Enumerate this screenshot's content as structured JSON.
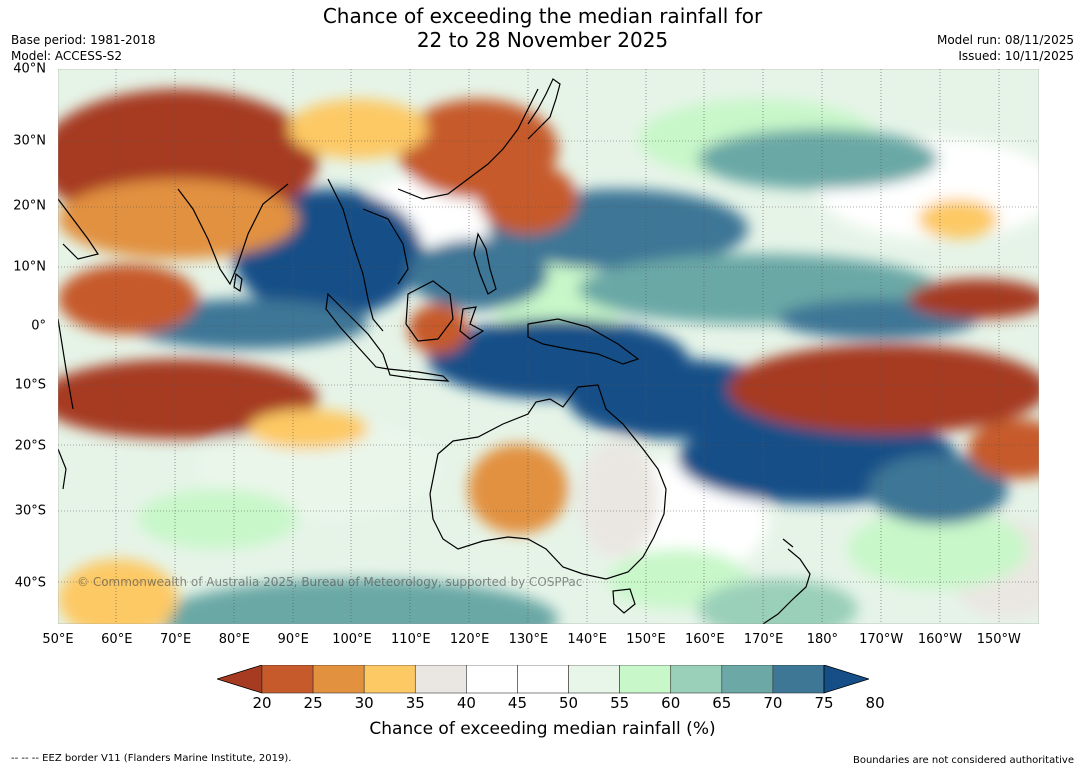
{
  "title": {
    "line1": "Chance of exceeding the median rainfall for",
    "line2": "22 to 28 November 2025"
  },
  "meta": {
    "base_period": "Base period: 1981-2018",
    "model": "Model: ACCESS-S2",
    "model_run": "Model run: 08/11/2025",
    "issued": "Issued: 10/11/2025"
  },
  "map": {
    "lat_labels": [
      "40°N",
      "30°N",
      "20°N",
      "10°N",
      "0°",
      "10°S",
      "20°S",
      "30°S",
      "40°S"
    ],
    "lon_labels": [
      "50°E",
      "60°E",
      "70°E",
      "80°E",
      "90°E",
      "100°E",
      "110°E",
      "120°E",
      "130°E",
      "140°E",
      "150°E",
      "160°E",
      "170°E",
      "180°",
      "170°W",
      "160°W",
      "150°W"
    ],
    "copyright": "© Commonwealth of Australia 2025, Bureau of Meteorology, supported by COSPPac"
  },
  "colorbar": {
    "ticks": [
      "20",
      "25",
      "30",
      "35",
      "40",
      "45",
      "50",
      "55",
      "60",
      "65",
      "70",
      "75",
      "80"
    ],
    "colors": [
      "#a63b22",
      "#c65a2a",
      "#e2913f",
      "#fdc965",
      "#eae7e2",
      "#ffffff",
      "#ffffff",
      "#e8f6e9",
      "#c8f7c9",
      "#9acfb9",
      "#6ba8a6",
      "#3e7696",
      "#164f87"
    ],
    "label": "Chance of exceeding median rainfall (%)"
  },
  "footer": {
    "left": "-- -- -- EEZ border V11 (Flanders Marine Institute, 2019).",
    "right": "Boundaries are not considered authoritative"
  }
}
